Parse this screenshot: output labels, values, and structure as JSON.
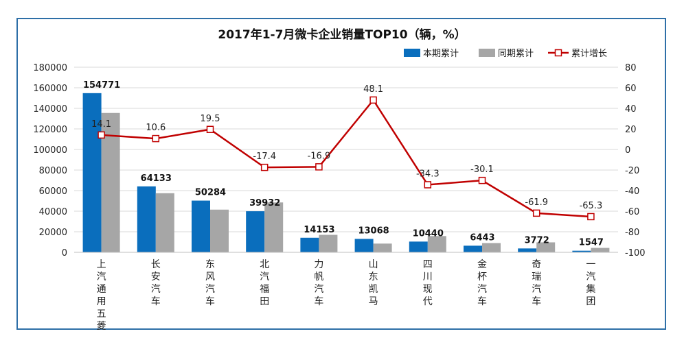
{
  "chart_data": {
    "type": "bar",
    "title": "2017年1-7月微卡企业销量TOP10（辆，%）",
    "categories": [
      "上汽通用五菱",
      "长安汽车",
      "东风汽车",
      "北汽福田",
      "力帆汽车",
      "山东凯马",
      "四川现代",
      "金杯汽车",
      "奇瑞汽车",
      "一汽集团"
    ],
    "series": [
      {
        "name": "本期累计",
        "type": "bar",
        "axis": "left",
        "color": "#0a6ebd",
        "values": [
          154771,
          64133,
          50284,
          39932,
          14153,
          13068,
          10440,
          6443,
          3772,
          1547
        ]
      },
      {
        "name": "同期累计",
        "type": "bar",
        "axis": "left",
        "color": "#a6a6a6",
        "values": [
          135500,
          57500,
          41500,
          48500,
          17000,
          8500,
          15800,
          9000,
          9700,
          4300
        ]
      },
      {
        "name": "累计增长",
        "type": "line",
        "axis": "right",
        "color": "#c00000",
        "values": [
          14.1,
          10.6,
          19.5,
          -17.4,
          -16.9,
          48.1,
          -34.3,
          -30.1,
          -61.9,
          -65.3
        ]
      }
    ],
    "y_left": {
      "min": 0,
      "max": 180000,
      "step": 20000
    },
    "y_right": {
      "min": -100,
      "max": 80,
      "step": 20
    },
    "legend_position": "top-right",
    "grid": true
  }
}
